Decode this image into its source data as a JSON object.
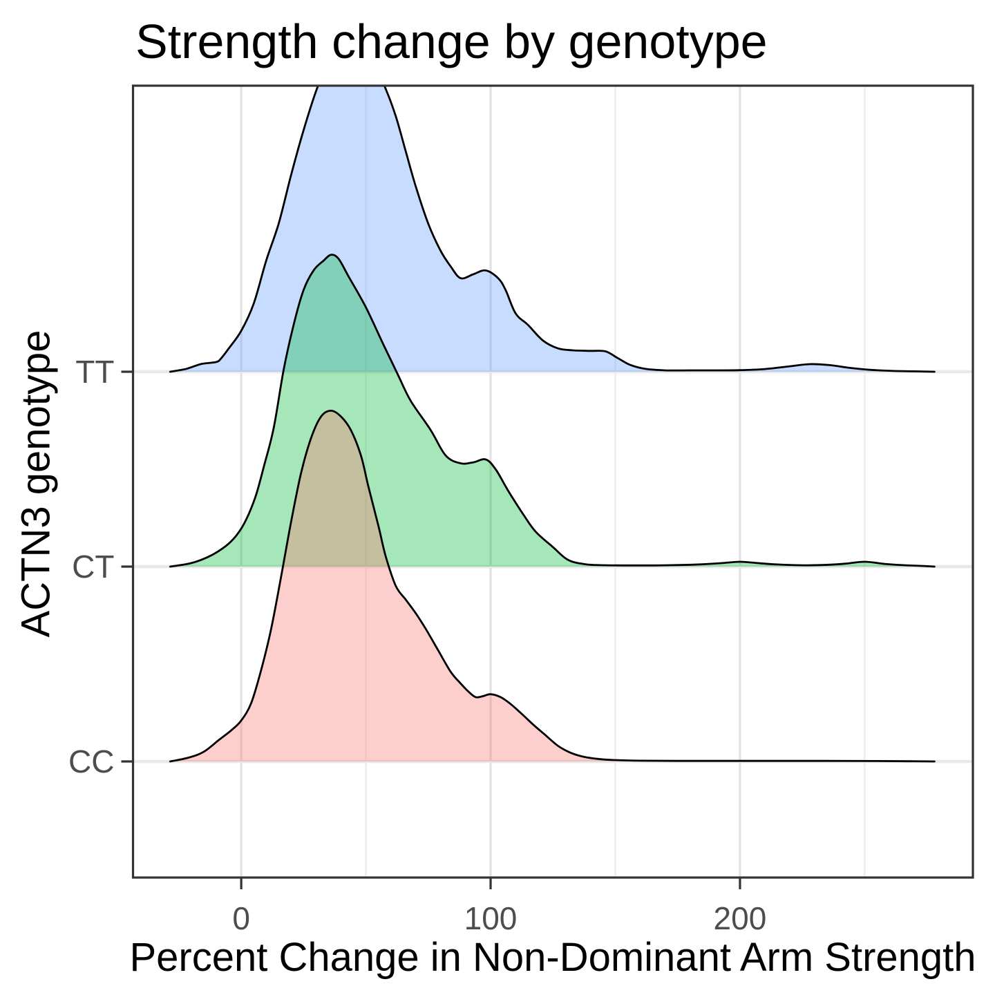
{
  "chart_data": {
    "type": "area",
    "variant": "ridgeline-density",
    "title": "Strength change by genotype",
    "xlabel": "Percent Change in Non-Dominant Arm Strength",
    "ylabel": "ACTN3 genotype",
    "xlim": [
      -43.4,
      293.4
    ],
    "x_ticks": [
      {
        "value": 0,
        "label": "0"
      },
      {
        "value": 100,
        "label": "100"
      },
      {
        "value": 200,
        "label": "200"
      }
    ],
    "x_minor_gridlines": [
      50,
      150,
      250
    ],
    "categories": [
      "TT",
      "CT",
      "CC"
    ],
    "legend": "none",
    "grid": "on",
    "height_unit": "1.0 equals the vertical spacing between category baselines",
    "fill_opacity": 0.35,
    "line_color": "#000000",
    "panel_border_color": "#333333",
    "major_grid_color": "#e2e2e2",
    "minor_grid_color": "#f0f0f0",
    "baseline_grid_color": "#e8e8e8",
    "tick_label_color": "#4d4d4d",
    "series": [
      {
        "genotype": "TT",
        "fill": "#619CFF",
        "points": [
          [
            -28.5,
            0
          ],
          [
            -22,
            0.015
          ],
          [
            -16,
            0.04
          ],
          [
            -10,
            0.05
          ],
          [
            -8,
            0.07
          ],
          [
            -5,
            0.12
          ],
          [
            0,
            0.21
          ],
          [
            5,
            0.35
          ],
          [
            10,
            0.57
          ],
          [
            15,
            0.76
          ],
          [
            20,
            1.01
          ],
          [
            25,
            1.24
          ],
          [
            30,
            1.44
          ],
          [
            34,
            1.56
          ],
          [
            38,
            1.62
          ],
          [
            44,
            1.65
          ],
          [
            50,
            1.62
          ],
          [
            54,
            1.56
          ],
          [
            58,
            1.45
          ],
          [
            62,
            1.31
          ],
          [
            66,
            1.13
          ],
          [
            70,
            0.95
          ],
          [
            75,
            0.76
          ],
          [
            80,
            0.62
          ],
          [
            84,
            0.54
          ],
          [
            88,
            0.48
          ],
          [
            93,
            0.5
          ],
          [
            98,
            0.52
          ],
          [
            103,
            0.48
          ],
          [
            106,
            0.42
          ],
          [
            110,
            0.3
          ],
          [
            115,
            0.24
          ],
          [
            121,
            0.16
          ],
          [
            127,
            0.12
          ],
          [
            133,
            0.11
          ],
          [
            140,
            0.107
          ],
          [
            146,
            0.105
          ],
          [
            151,
            0.07
          ],
          [
            156,
            0.035
          ],
          [
            162,
            0.015
          ],
          [
            170,
            0.007
          ],
          [
            180,
            0.007
          ],
          [
            190,
            0.007
          ],
          [
            200,
            0.008
          ],
          [
            210,
            0.014
          ],
          [
            220,
            0.028
          ],
          [
            228,
            0.039
          ],
          [
            236,
            0.034
          ],
          [
            244,
            0.02
          ],
          [
            252,
            0.01
          ],
          [
            262,
            0.004
          ],
          [
            270,
            0.002
          ],
          [
            278,
            0
          ]
        ]
      },
      {
        "genotype": "CT",
        "fill": "#00BA38",
        "points": [
          [
            -28.5,
            0
          ],
          [
            -21,
            0.015
          ],
          [
            -15,
            0.04
          ],
          [
            -9,
            0.08
          ],
          [
            -4,
            0.13
          ],
          [
            0,
            0.195
          ],
          [
            3,
            0.27
          ],
          [
            6,
            0.37
          ],
          [
            9,
            0.51
          ],
          [
            13,
            0.71
          ],
          [
            17,
            1.01
          ],
          [
            21,
            1.24
          ],
          [
            25,
            1.42
          ],
          [
            29,
            1.52
          ],
          [
            33,
            1.57
          ],
          [
            36,
            1.6
          ],
          [
            39,
            1.58
          ],
          [
            43,
            1.49
          ],
          [
            50,
            1.33
          ],
          [
            57,
            1.14
          ],
          [
            63,
            0.98
          ],
          [
            68,
            0.85
          ],
          [
            76,
            0.7
          ],
          [
            82,
            0.57
          ],
          [
            88,
            0.53
          ],
          [
            93,
            0.535
          ],
          [
            98,
            0.55
          ],
          [
            102,
            0.5
          ],
          [
            107,
            0.39
          ],
          [
            113,
            0.27
          ],
          [
            118,
            0.18
          ],
          [
            125,
            0.1
          ],
          [
            131,
            0.035
          ],
          [
            138,
            0.012
          ],
          [
            146,
            0.007
          ],
          [
            156,
            0.006
          ],
          [
            166,
            0.006
          ],
          [
            176,
            0.008
          ],
          [
            185,
            0.012
          ],
          [
            193,
            0.018
          ],
          [
            200,
            0.025
          ],
          [
            207,
            0.018
          ],
          [
            215,
            0.011
          ],
          [
            224,
            0.007
          ],
          [
            233,
            0.008
          ],
          [
            242,
            0.015
          ],
          [
            250,
            0.025
          ],
          [
            258,
            0.014
          ],
          [
            266,
            0.007
          ],
          [
            272,
            0.004
          ],
          [
            278,
            0
          ]
        ]
      },
      {
        "genotype": "CC",
        "fill": "#F8766D",
        "points": [
          [
            -28.5,
            0
          ],
          [
            -21,
            0.02
          ],
          [
            -15,
            0.05
          ],
          [
            -9,
            0.11
          ],
          [
            -4,
            0.16
          ],
          [
            0,
            0.21
          ],
          [
            4,
            0.3
          ],
          [
            8,
            0.47
          ],
          [
            12,
            0.68
          ],
          [
            16,
            0.95
          ],
          [
            20,
            1.23
          ],
          [
            24,
            1.48
          ],
          [
            28,
            1.66
          ],
          [
            32,
            1.77
          ],
          [
            36,
            1.8
          ],
          [
            40,
            1.77
          ],
          [
            44,
            1.7
          ],
          [
            48,
            1.57
          ],
          [
            51,
            1.41
          ],
          [
            55,
            1.21
          ],
          [
            58,
            1.05
          ],
          [
            62,
            0.9
          ],
          [
            66,
            0.83
          ],
          [
            70,
            0.76
          ],
          [
            74,
            0.68
          ],
          [
            79,
            0.57
          ],
          [
            84,
            0.46
          ],
          [
            88,
            0.4
          ],
          [
            91,
            0.36
          ],
          [
            94,
            0.33
          ],
          [
            97,
            0.335
          ],
          [
            100,
            0.345
          ],
          [
            104,
            0.33
          ],
          [
            108,
            0.295
          ],
          [
            112,
            0.25
          ],
          [
            117,
            0.19
          ],
          [
            122,
            0.135
          ],
          [
            127,
            0.08
          ],
          [
            132,
            0.045
          ],
          [
            137,
            0.025
          ],
          [
            143,
            0.013
          ],
          [
            150,
            0.007
          ],
          [
            160,
            0.004
          ],
          [
            175,
            0.003
          ],
          [
            195,
            0.003
          ],
          [
            215,
            0.003
          ],
          [
            235,
            0.003
          ],
          [
            255,
            0.002
          ],
          [
            268,
            0.001
          ],
          [
            278,
            0
          ]
        ]
      }
    ]
  }
}
